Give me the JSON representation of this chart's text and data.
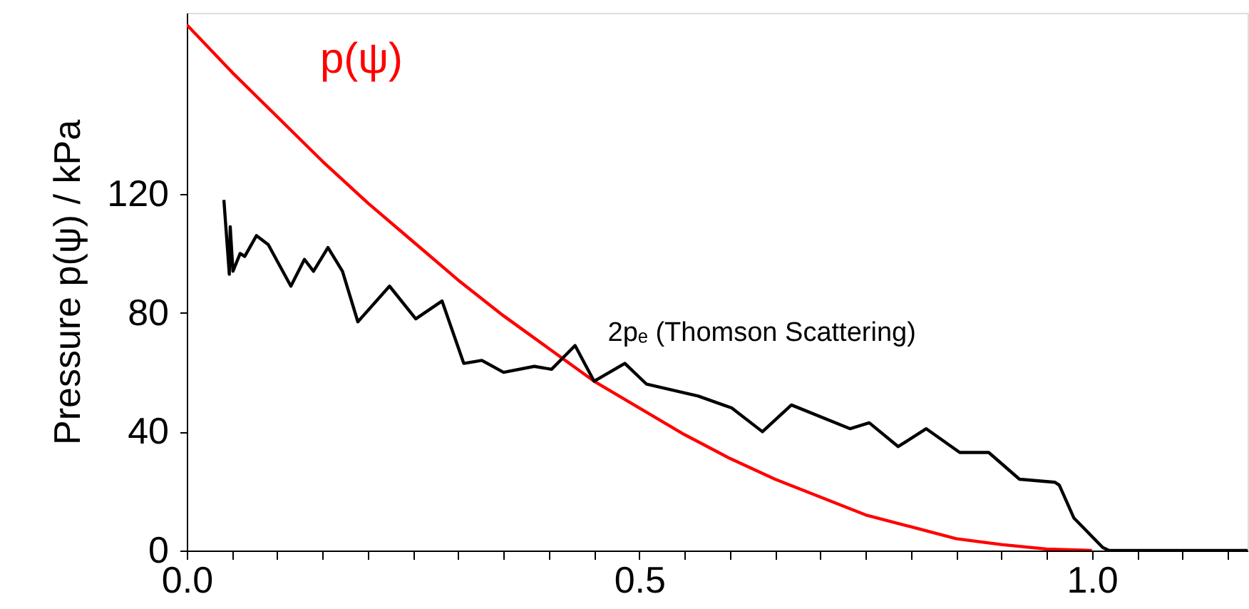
{
  "chart_data": {
    "type": "line",
    "ylabel": "Pressure p(ψ) / kPa",
    "xlim": [
      0,
      1.172
    ],
    "ylim": [
      0,
      181
    ],
    "xticks": [
      {
        "value": 0,
        "label": "0.0"
      },
      {
        "value": 0.05,
        "label": null
      },
      {
        "value": 0.1,
        "label": null
      },
      {
        "value": 0.15,
        "label": null
      },
      {
        "value": 0.2,
        "label": null
      },
      {
        "value": 0.25,
        "label": null
      },
      {
        "value": 0.3,
        "label": null
      },
      {
        "value": 0.35,
        "label": null
      },
      {
        "value": 0.4,
        "label": null
      },
      {
        "value": 0.45,
        "label": null
      },
      {
        "value": 0.5,
        "label": "0.5"
      },
      {
        "value": 0.55,
        "label": null
      },
      {
        "value": 0.6,
        "label": null
      },
      {
        "value": 0.65,
        "label": null
      },
      {
        "value": 0.7,
        "label": null
      },
      {
        "value": 0.75,
        "label": null
      },
      {
        "value": 0.8,
        "label": null
      },
      {
        "value": 0.85,
        "label": null
      },
      {
        "value": 0.9,
        "label": null
      },
      {
        "value": 0.95,
        "label": null
      },
      {
        "value": 1.0,
        "label": "1.0"
      },
      {
        "value": 1.05,
        "label": null
      },
      {
        "value": 1.1,
        "label": null
      },
      {
        "value": 1.15,
        "label": null
      }
    ],
    "yticks": [
      0,
      40,
      80,
      120
    ],
    "grid": false,
    "legend": false,
    "marker": "none",
    "line_style": "solid",
    "series": [
      {
        "name": "p(ψ)",
        "color": "#ff0000",
        "x": [
          0,
          0.05,
          0.1,
          0.15,
          0.2,
          0.25,
          0.3,
          0.35,
          0.4,
          0.45,
          0.5,
          0.55,
          0.6,
          0.65,
          0.7,
          0.75,
          0.8,
          0.85,
          0.9,
          0.95,
          1.0
        ],
        "values": [
          177,
          161,
          146,
          131,
          117,
          104,
          91,
          79,
          68,
          57,
          48,
          39,
          31,
          24,
          18,
          12,
          8,
          4,
          2,
          0.5,
          0
        ]
      },
      {
        "name": "2pₑ (Thomson Scattering)",
        "color": "#000000",
        "x": [
          0.041,
          0.047,
          0.048,
          0.051,
          0.059,
          0.064,
          0.077,
          0.09,
          0.115,
          0.13,
          0.14,
          0.156,
          0.172,
          0.189,
          0.224,
          0.253,
          0.282,
          0.306,
          0.326,
          0.35,
          0.384,
          0.403,
          0.429,
          0.45,
          0.484,
          0.508,
          0.565,
          0.602,
          0.636,
          0.668,
          0.733,
          0.754,
          0.786,
          0.817,
          0.854,
          0.886,
          0.92,
          0.959,
          0.964,
          0.98,
          1.012,
          1.019,
          1.172
        ],
        "values": [
          118,
          93,
          109,
          94,
          100,
          99,
          106,
          103,
          89,
          98,
          94,
          102,
          94,
          77,
          89,
          78,
          84,
          63,
          64,
          60,
          62,
          61,
          69,
          57,
          63,
          56,
          52,
          48,
          40,
          49,
          41,
          43,
          35,
          41,
          33,
          33,
          24,
          23,
          22,
          11,
          1,
          0,
          0
        ]
      }
    ]
  }
}
